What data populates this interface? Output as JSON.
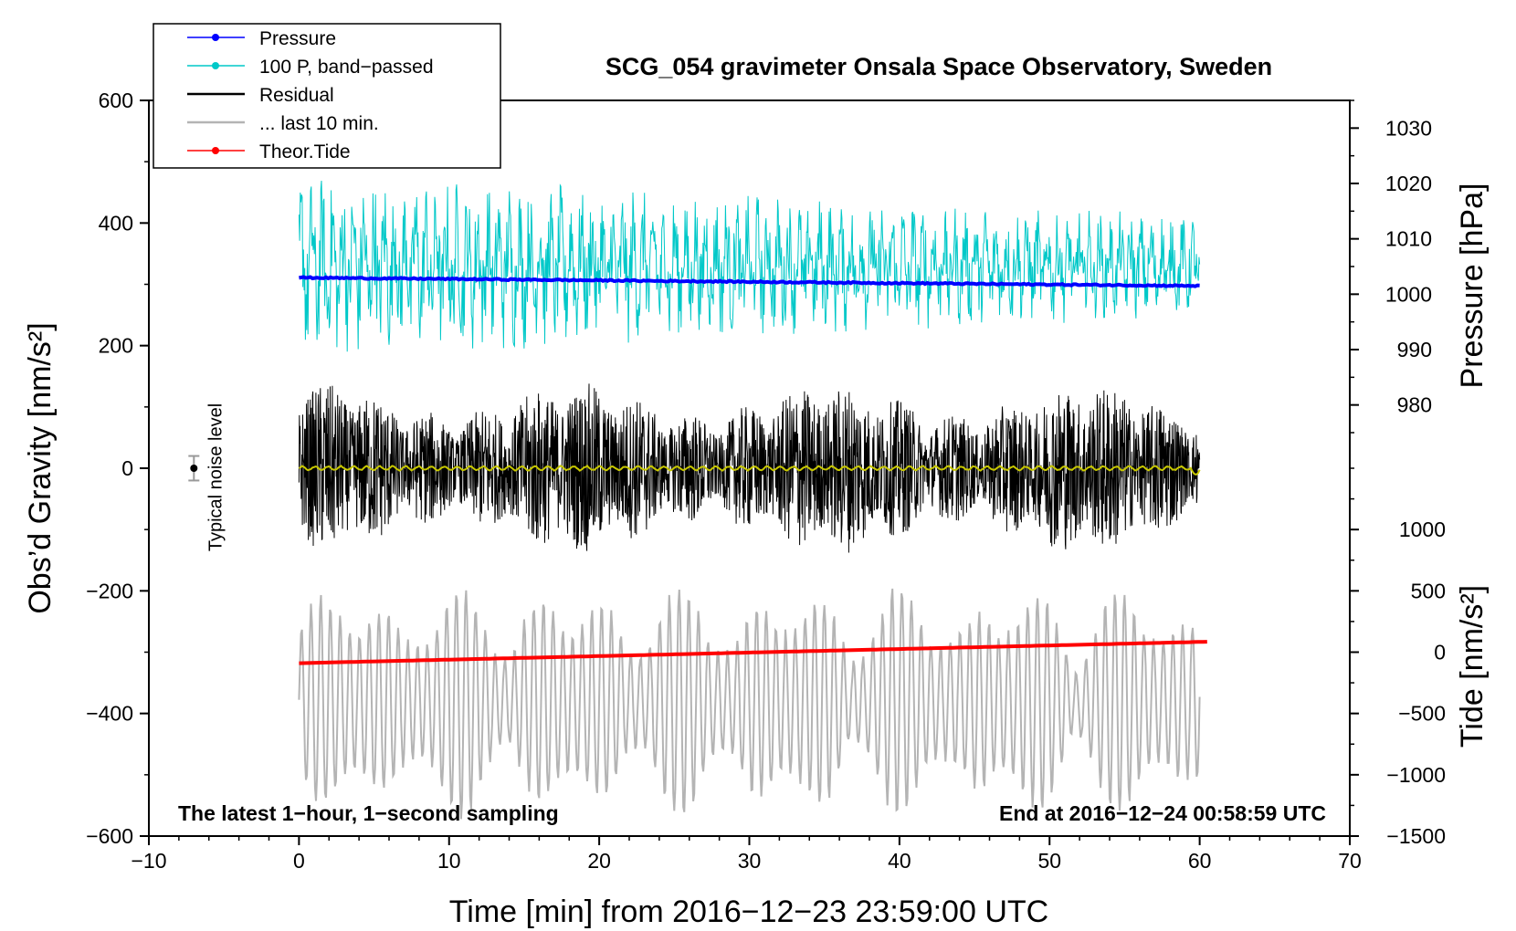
{
  "chart_data": {
    "type": "line",
    "title": "SCG_054 gravimeter Onsala Space Observatory, Sweden",
    "xlabel": "Time [min] from 2016−12−23 23:59:00 UTC",
    "ylabel_left": "Obs’d Gravity [nm/s²]",
    "ylabel_pressure": "Pressure [hPa]",
    "ylabel_tide": "Tide [nm/s²]",
    "xlim": [
      -10,
      70
    ],
    "ylim_left": [
      -600,
      600
    ],
    "x_ticks": [
      "−10",
      "0",
      "10",
      "20",
      "30",
      "40",
      "50",
      "60",
      "70"
    ],
    "x_tick_values": [
      -10,
      0,
      10,
      20,
      30,
      40,
      50,
      60,
      70
    ],
    "left_ticks": [
      "−600",
      "−400",
      "−200",
      "0",
      "200",
      "400",
      "600"
    ],
    "left_tick_values": [
      -600,
      -400,
      -200,
      0,
      200,
      400,
      600
    ],
    "pressure_axis": {
      "range": [
        975,
        1035
      ],
      "ticks": [
        "980",
        "990",
        "1000",
        "1010",
        "1020",
        "1030"
      ],
      "tick_values": [
        980,
        990,
        1000,
        1010,
        1020,
        1030
      ]
    },
    "tide_axis": {
      "range": [
        -1500,
        1500
      ],
      "ticks": [
        "−1500",
        "−1000",
        "−500",
        "0",
        "500",
        "1000"
      ],
      "tick_values": [
        -1500,
        -1000,
        -500,
        0,
        500,
        1000
      ]
    },
    "legend": [
      {
        "label": "Pressure",
        "color": "#0000ff",
        "marker": true
      },
      {
        "label": "100 P, band−passed",
        "color": "#00c8c8",
        "marker": true
      },
      {
        "label": "Residual",
        "color": "#000000",
        "marker": false
      },
      {
        "label": "... last 10 min.",
        "color": "#b4b4b4",
        "marker": false
      },
      {
        "label": "Theor.Tide",
        "color": "#ff0000",
        "marker": true
      }
    ],
    "series": [
      {
        "name": "Pressure",
        "color": "#0000ff",
        "axis": "pressure",
        "x": [
          0,
          60
        ],
        "y_start": 1003.0,
        "y_end": 1001.5
      },
      {
        "name": "100 P, band−passed",
        "color": "#00c8c8",
        "axis": "left",
        "x": [
          0,
          60
        ],
        "center": 330,
        "amplitude_start": 130,
        "amplitude_end": 70
      },
      {
        "name": "Residual",
        "color": "#000000",
        "axis": "left",
        "x": [
          0,
          60
        ],
        "center": 0,
        "amplitude": 170
      },
      {
        "name": "... last 10 min.",
        "color": "#b4b4b4",
        "axis": "left",
        "x": [
          0,
          60
        ],
        "center": -380,
        "amplitude": 150
      },
      {
        "name": "Theor.Tide",
        "color": "#ff0000",
        "axis": "left",
        "x": [
          0,
          60.5
        ],
        "y_start": -318,
        "y_end": -283
      },
      {
        "name": "Smoothed residual",
        "color": "#c8c800",
        "axis": "left",
        "x": [
          0,
          60
        ],
        "center": 0,
        "amplitude": 4
      }
    ],
    "noise_marker": {
      "x": -7,
      "y": 0,
      "err": 20,
      "label": "Typical noise level"
    },
    "annotation_left": "The latest 1−hour, 1−second sampling",
    "annotation_right": "End at 2016−12−24 00:58:59 UTC"
  }
}
